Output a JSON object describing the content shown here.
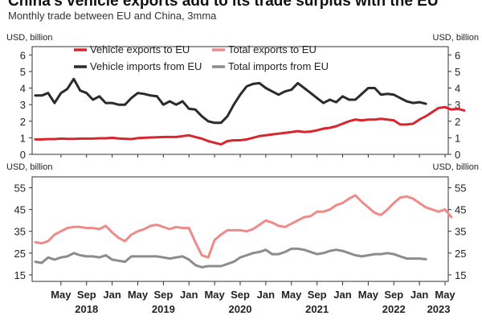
{
  "title": "China's vehicle exports add to its trade surplus with the EU",
  "subtitle": "Monthly trade between EU and China, 3mma",
  "chart_data": [
    {
      "type": "line",
      "unit_label_left": "USD, billion",
      "unit_label_right": "USD, billion",
      "ylim": [
        0,
        6.5
      ],
      "y_ticks": [
        0,
        1,
        2,
        3,
        4,
        5,
        6
      ],
      "grid": false,
      "legend_position": "top",
      "x_start": "2018-01",
      "series": [
        {
          "name": "Vehicle exports to EU",
          "color": "#d7262e",
          "values": [
            0.9,
            0.9,
            0.92,
            0.92,
            0.95,
            0.93,
            0.93,
            0.95,
            0.95,
            0.95,
            0.97,
            0.97,
            1.0,
            0.96,
            0.94,
            0.92,
            0.98,
            1.0,
            1.02,
            1.03,
            1.05,
            1.05,
            1.05,
            1.1,
            1.15,
            1.05,
            0.95,
            0.8,
            0.7,
            0.6,
            0.8,
            0.85,
            0.85,
            0.9,
            1.0,
            1.1,
            1.15,
            1.2,
            1.25,
            1.3,
            1.35,
            1.4,
            1.35,
            1.38,
            1.45,
            1.55,
            1.6,
            1.7,
            1.85,
            2.0,
            2.1,
            2.05,
            2.1,
            2.1,
            2.15,
            2.1,
            2.05,
            1.8,
            1.8,
            1.85,
            2.1,
            2.3,
            2.55,
            2.8,
            2.85,
            2.7,
            2.75,
            2.65
          ]
        },
        {
          "name": "Vehicle imports from EU",
          "color": "#2b2b2b",
          "values": [
            3.55,
            3.55,
            3.7,
            3.1,
            3.7,
            3.95,
            4.55,
            3.85,
            3.7,
            3.3,
            3.5,
            3.1,
            3.1,
            3.0,
            3.0,
            3.4,
            3.7,
            3.65,
            3.55,
            3.5,
            3.0,
            3.2,
            3.0,
            3.2,
            2.75,
            2.7,
            2.3,
            2.0,
            1.9,
            1.9,
            2.3,
            3.0,
            3.6,
            4.1,
            4.25,
            4.3,
            4.0,
            3.8,
            3.6,
            3.8,
            3.9,
            4.3,
            4.0,
            3.7,
            3.4,
            3.1,
            3.3,
            3.15,
            3.5,
            3.3,
            3.3,
            3.65,
            4.0,
            4.0,
            3.6,
            3.65,
            3.6,
            3.4,
            3.2,
            3.1,
            3.15,
            3.05
          ]
        }
      ]
    },
    {
      "type": "line",
      "unit_label_left": "USD, billion",
      "unit_label_right": "USD, billion",
      "ylim": [
        12,
        60
      ],
      "y_ticks": [
        15,
        25,
        35,
        45,
        55
      ],
      "grid": false,
      "legend_position": "top",
      "x_start": "2018-01",
      "series": [
        {
          "name": "Total exports to EU",
          "color": "#ef8a8a",
          "values": [
            30,
            29.5,
            30.5,
            33.5,
            35,
            36.5,
            37,
            37,
            36.5,
            36.5,
            36,
            37.5,
            34.5,
            32,
            30.5,
            33.5,
            35,
            36,
            37.5,
            38,
            37,
            36,
            37,
            36.5,
            36.5,
            30,
            24,
            23,
            31,
            33.5,
            35.5,
            35.5,
            35.5,
            35,
            36,
            38,
            40,
            39,
            37.5,
            37,
            38.5,
            40,
            41.5,
            42,
            44,
            44,
            45,
            47,
            48,
            50,
            51.5,
            48.5,
            46,
            43.5,
            42.5,
            45,
            48,
            50.5,
            51,
            50,
            48,
            46,
            45,
            44,
            45,
            41.5
          ]
        },
        {
          "name": "Total imports from EU",
          "color": "#8c8c8c",
          "values": [
            21,
            20.5,
            23,
            22,
            23,
            23.5,
            25,
            24,
            23.5,
            23.5,
            23,
            24,
            22,
            21.5,
            21,
            23.5,
            23.5,
            23.5,
            23.5,
            23.5,
            23,
            22.5,
            23,
            23.5,
            22,
            19.5,
            18.5,
            19,
            19,
            19,
            20,
            21,
            23,
            24,
            25,
            25.5,
            26.5,
            24.5,
            24.5,
            25.5,
            27,
            27,
            26.5,
            25.5,
            24.5,
            25,
            26,
            26.5,
            26,
            25,
            24,
            23.5,
            24,
            24.5,
            24.5,
            25,
            24.5,
            23.5,
            22.5,
            22.5,
            22.5,
            22.2
          ]
        }
      ]
    }
  ],
  "x_axis": {
    "tick_labels": [
      "May",
      "Sep",
      "Jan",
      "May",
      "Sep",
      "Jan",
      "May",
      "Sep",
      "Jan",
      "May",
      "Sep",
      "Jan",
      "May",
      "Sep",
      "Jan",
      "May"
    ],
    "year_labels": [
      "2018",
      "2019",
      "2020",
      "2021",
      "2022",
      "2023"
    ]
  },
  "labels": {
    "unit_left": "USD, billion",
    "unit_right": "USD, billion"
  }
}
